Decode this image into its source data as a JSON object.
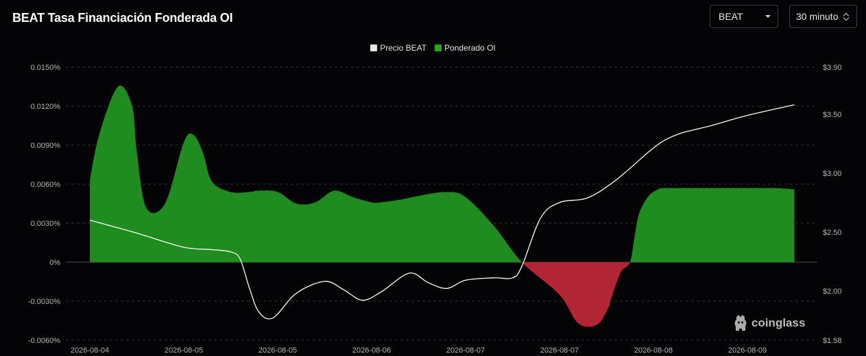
{
  "header": {
    "title": "BEAT Tasa Financiación Fonderada OI",
    "symbol_select": "BEAT",
    "interval_select": "30 minuto"
  },
  "brand": {
    "logo_text": "coinglass"
  },
  "colors": {
    "background": "#040407",
    "positive": "#1e8c1e",
    "negative": "#b22534",
    "price_line": "#ffffff",
    "grid": "#2e2e33",
    "zero_line": "#4a4a50"
  },
  "chart_data": {
    "type": "area",
    "title": "",
    "legend": {
      "position": "top-center",
      "entries": [
        "Precio BEAT",
        "Ponderado OI"
      ]
    },
    "legend_colors": [
      "#e6e6e6",
      "#25a625"
    ],
    "x_tick_labels": [
      "2026-08-04",
      "2026-08-05",
      "2026-08-05",
      "2026-08-06",
      "2026-08-07",
      "2026-08-07",
      "2026-08-08",
      "2026-08-09"
    ],
    "y_left": {
      "range": [
        -0.006,
        0.015
      ],
      "tick_values": [
        -0.006,
        -0.003,
        0,
        0.003,
        0.006,
        0.009,
        0.012,
        0.015
      ],
      "tick_labels": [
        "-0.0060%",
        "-0.0030%",
        "0%",
        "0.0030%",
        "0.0060%",
        "0.0090%",
        "0.0120%",
        "0.0150%"
      ]
    },
    "y_right": {
      "range": [
        1.58,
        3.9
      ],
      "tick_values": [
        1.58,
        2.0,
        2.5,
        3.0,
        3.5,
        3.9
      ],
      "tick_labels": [
        "$1.58",
        "$2.00",
        "$2.50",
        "$3.00",
        "$3.50",
        "$3.90"
      ]
    },
    "grid": true,
    "series": [
      {
        "name": "Ponderado OI",
        "axis": "left",
        "x": [
          0,
          0.1,
          0.3,
          0.45,
          0.5,
          0.6,
          0.8,
          1.0,
          1.1,
          1.2,
          1.3,
          1.5,
          1.7,
          1.8,
          2.0,
          2.2,
          2.4,
          2.6,
          2.8,
          3.0,
          3.1,
          3.3,
          3.5,
          3.8,
          4.0,
          4.3,
          4.6,
          5.0,
          5.2,
          5.4,
          5.52,
          5.55,
          5.65,
          5.75,
          5.8,
          5.85,
          5.95,
          6.05,
          6.1,
          6.3,
          6.5,
          6.8,
          7.0,
          7.3,
          7.5
        ],
        "values": [
          0.0063,
          0.0098,
          0.0135,
          0.012,
          0.0085,
          0.0042,
          0.0045,
          0.0092,
          0.0098,
          0.0085,
          0.0062,
          0.0054,
          0.0054,
          0.0055,
          0.0054,
          0.0045,
          0.0046,
          0.0055,
          0.005,
          0.0046,
          0.0046,
          0.0048,
          0.0051,
          0.0054,
          0.005,
          0.0028,
          0.0,
          -0.0025,
          -0.0047,
          -0.0048,
          -0.0035,
          -0.0028,
          -0.0008,
          0.0,
          0.002,
          0.0038,
          0.0051,
          0.0056,
          0.0057,
          0.0057,
          0.0057,
          0.0057,
          0.0057,
          0.0057,
          0.0056
        ]
      },
      {
        "name": "Precio BEAT",
        "axis": "right",
        "x": [
          0,
          0.5,
          1.0,
          1.3,
          1.5,
          1.6,
          1.7,
          1.8,
          1.95,
          2.2,
          2.5,
          2.7,
          2.9,
          3.1,
          3.4,
          3.6,
          3.8,
          4.0,
          4.3,
          4.5,
          4.6,
          4.8,
          5.0,
          5.3,
          5.6,
          5.95,
          6.1,
          6.3,
          6.6,
          7.0,
          7.5
        ],
        "values": [
          2.6,
          2.49,
          2.37,
          2.35,
          2.33,
          2.27,
          2.02,
          1.82,
          1.77,
          1.98,
          2.08,
          2.01,
          1.92,
          1.99,
          2.15,
          2.07,
          2.02,
          2.09,
          2.11,
          2.11,
          2.21,
          2.62,
          2.75,
          2.79,
          2.94,
          3.18,
          3.27,
          3.34,
          3.4,
          3.49,
          3.58
        ]
      }
    ]
  }
}
